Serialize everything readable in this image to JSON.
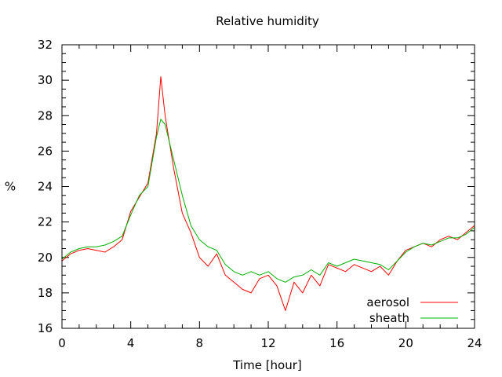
{
  "chart_data": {
    "type": "line",
    "title": "Relative humidity",
    "xlabel": "Time [hour]",
    "ylabel": "%",
    "xlim": [
      0,
      24
    ],
    "ylim": [
      16,
      32
    ],
    "xticks": [
      "0",
      "4",
      "8",
      "12",
      "16",
      "20",
      "24"
    ],
    "yticks": [
      "16",
      "18",
      "20",
      "22",
      "24",
      "26",
      "28",
      "30",
      "32"
    ],
    "grid": false,
    "legend_position": "bottom-right",
    "x": [
      0,
      0.5,
      1,
      1.5,
      2,
      2.5,
      3,
      3.5,
      4,
      4.5,
      5,
      5.5,
      5.75,
      6,
      6.5,
      7,
      7.5,
      8,
      8.5,
      9,
      9.5,
      10,
      10.5,
      11,
      11.5,
      12,
      12.5,
      13,
      13.5,
      14,
      14.5,
      15,
      15.5,
      16,
      16.5,
      17,
      17.5,
      18,
      18.5,
      19,
      19.5,
      20,
      20.5,
      21,
      21.5,
      22,
      22.5,
      23,
      23.5,
      24
    ],
    "series": [
      {
        "name": "aerosol",
        "color": "#ff0000",
        "values": [
          19.8,
          20.2,
          20.4,
          20.5,
          20.4,
          20.3,
          20.6,
          21.0,
          22.6,
          23.4,
          24.2,
          27.0,
          30.2,
          28.0,
          25.0,
          22.5,
          21.4,
          20.0,
          19.5,
          20.2,
          19.0,
          18.6,
          18.2,
          18.0,
          18.8,
          19.0,
          18.4,
          17.0,
          18.6,
          18.0,
          19.0,
          18.4,
          19.6,
          19.4,
          19.2,
          19.6,
          19.4,
          19.2,
          19.5,
          19.0,
          19.8,
          20.4,
          20.6,
          20.8,
          20.6,
          21.0,
          21.2,
          21.0,
          21.4,
          21.8
        ]
      },
      {
        "name": "sheath",
        "color": "#00b000",
        "values": [
          19.9,
          20.3,
          20.5,
          20.6,
          20.6,
          20.7,
          20.9,
          21.2,
          22.4,
          23.5,
          24.0,
          26.8,
          27.8,
          27.5,
          25.5,
          23.5,
          21.8,
          21.0,
          20.6,
          20.4,
          19.6,
          19.2,
          19.0,
          19.2,
          19.0,
          19.2,
          18.8,
          18.6,
          18.9,
          19.0,
          19.3,
          19.0,
          19.7,
          19.5,
          19.7,
          19.9,
          19.8,
          19.7,
          19.6,
          19.3,
          19.8,
          20.3,
          20.6,
          20.8,
          20.7,
          20.9,
          21.1,
          21.1,
          21.3,
          21.7
        ]
      }
    ]
  }
}
